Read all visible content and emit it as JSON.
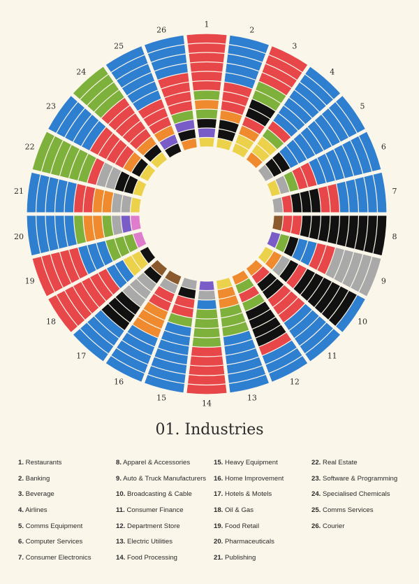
{
  "title": "01. Industries",
  "colors": {
    "background": "#fbf6ea",
    "blue": "#2f7fd0",
    "red": "#e8474a",
    "green": "#7eb03c",
    "black": "#111111",
    "gray": "#a9a9a9",
    "orange": "#ef8a2e",
    "yellow": "#ecd24a",
    "purple": "#7a5cc8",
    "pink": "#e07ccc",
    "brown": "#8a5a2e"
  },
  "chart_data": {
    "type": "radial-bar",
    "rings_per_segment": 12,
    "segments": [
      {
        "n": "1",
        "label": "Restaurants",
        "rings": [
          "yellow",
          "purple",
          "black",
          "green",
          "orange",
          "green",
          "red",
          "red",
          "red",
          "red",
          "red",
          "red"
        ]
      },
      {
        "n": "2",
        "label": "Banking",
        "rings": [
          "yellow",
          "black",
          "black",
          "orange",
          "red",
          "red",
          "red",
          "blue",
          "blue",
          "blue",
          "blue",
          "blue"
        ]
      },
      {
        "n": "3",
        "label": "Beverage",
        "rings": [
          "yellow",
          "yellow",
          "orange",
          "red",
          "black",
          "black",
          "green",
          "green",
          "red",
          "red",
          "red",
          "red"
        ]
      },
      {
        "n": "4",
        "label": "Airlines",
        "rings": [
          "orange",
          "yellow",
          "yellow",
          "green",
          "red",
          "blue",
          "blue",
          "blue",
          "blue",
          "blue",
          "blue",
          "blue"
        ]
      },
      {
        "n": "5",
        "label": "Comms Equipment",
        "rings": [
          "gray",
          "black",
          "black",
          "blue",
          "blue",
          "blue",
          "blue",
          "blue",
          "blue",
          "blue",
          "blue",
          "blue"
        ]
      },
      {
        "n": "6",
        "label": "Computer Services",
        "rings": [
          "yellow",
          "gray",
          "green",
          "red",
          "red",
          "blue",
          "blue",
          "blue",
          "blue",
          "blue",
          "blue",
          "blue"
        ]
      },
      {
        "n": "7",
        "label": "Consumer Electronics",
        "rings": [
          "gray",
          "red",
          "black",
          "black",
          "black",
          "red",
          "red",
          "blue",
          "blue",
          "blue",
          "blue",
          "blue"
        ]
      },
      {
        "n": "8",
        "label": "Apparel & Accessories",
        "rings": [
          "brown",
          "red",
          "red",
          "black",
          "black",
          "black",
          "black",
          "black",
          "black",
          "black",
          "black",
          "black"
        ]
      },
      {
        "n": "9",
        "label": "Auto & Truck Manufacturers",
        "rings": [
          "purple",
          "green",
          "black",
          "blue",
          "blue",
          "red",
          "red",
          "gray",
          "gray",
          "gray",
          "gray",
          "gray"
        ]
      },
      {
        "n": "10",
        "label": "Broadcasting & Cable",
        "rings": [
          "yellow",
          "orange",
          "gray",
          "black",
          "red",
          "black",
          "black",
          "black",
          "black",
          "black",
          "black",
          "blue"
        ]
      },
      {
        "n": "11",
        "label": "Consumer Finance",
        "rings": [
          "orange",
          "red",
          "black",
          "black",
          "red",
          "red",
          "red",
          "blue",
          "blue",
          "blue",
          "blue",
          "blue"
        ]
      },
      {
        "n": "12",
        "label": "Department Store",
        "rings": [
          "orange",
          "green",
          "red",
          "green",
          "black",
          "black",
          "black",
          "black",
          "red",
          "blue",
          "blue",
          "blue"
        ]
      },
      {
        "n": "13",
        "label": "Electric Utilities",
        "rings": [
          "yellow",
          "orange",
          "orange",
          "green",
          "green",
          "green",
          "blue",
          "blue",
          "blue",
          "blue",
          "blue",
          "blue"
        ]
      },
      {
        "n": "14",
        "label": "Food Processing",
        "rings": [
          "purple",
          "gray",
          "blue",
          "green",
          "green",
          "green",
          "green",
          "red",
          "red",
          "red",
          "red",
          "red"
        ]
      },
      {
        "n": "15",
        "label": "Heavy Equipment",
        "rings": [
          "gray",
          "black",
          "red",
          "red",
          "green",
          "blue",
          "blue",
          "blue",
          "blue",
          "blue",
          "blue",
          "blue"
        ]
      },
      {
        "n": "16",
        "label": "Home Improvement",
        "rings": [
          "brown",
          "gray",
          "red",
          "red",
          "orange",
          "orange",
          "orange",
          "blue",
          "blue",
          "blue",
          "blue",
          "blue"
        ]
      },
      {
        "n": "17",
        "label": "Hotels & Motels",
        "rings": [
          "brown",
          "black",
          "gray",
          "gray",
          "gray",
          "black",
          "black",
          "black",
          "blue",
          "blue",
          "blue",
          "blue"
        ]
      },
      {
        "n": "18",
        "label": "Oil & Gas",
        "rings": [
          "black",
          "yellow",
          "yellow",
          "blue",
          "blue",
          "red",
          "red",
          "red",
          "red",
          "red",
          "red",
          "red"
        ]
      },
      {
        "n": "19",
        "label": "Food Retail",
        "rings": [
          "pink",
          "green",
          "green",
          "green",
          "blue",
          "blue",
          "blue",
          "red",
          "red",
          "red",
          "red",
          "red"
        ]
      },
      {
        "n": "20",
        "label": "Pharmaceuticals",
        "rings": [
          "pink",
          "purple",
          "gray",
          "green",
          "orange",
          "orange",
          "green",
          "blue",
          "blue",
          "blue",
          "blue",
          "blue"
        ]
      },
      {
        "n": "21",
        "label": "Publishing",
        "rings": [
          "yellow",
          "gray",
          "gray",
          "orange",
          "orange",
          "red",
          "red",
          "blue",
          "blue",
          "blue",
          "blue",
          "blue"
        ]
      },
      {
        "n": "22",
        "label": "Real Estate",
        "rings": [
          "yellow",
          "black",
          "black",
          "gray",
          "gray",
          "red",
          "green",
          "green",
          "green",
          "green",
          "green",
          "green"
        ]
      },
      {
        "n": "23",
        "label": "Software & Programming",
        "rings": [
          "yellow",
          "black",
          "orange",
          "red",
          "red",
          "red",
          "red",
          "blue",
          "blue",
          "blue",
          "blue",
          "blue"
        ]
      },
      {
        "n": "24",
        "label": "Specialised Chemicals",
        "rings": [
          "yellow",
          "black",
          "orange",
          "red",
          "red",
          "red",
          "red",
          "red",
          "green",
          "green",
          "green",
          "green"
        ]
      },
      {
        "n": "25",
        "label": "Comms Services",
        "rings": [
          "black",
          "purple",
          "orange",
          "red",
          "red",
          "red",
          "blue",
          "blue",
          "blue",
          "blue",
          "blue",
          "blue"
        ]
      },
      {
        "n": "26",
        "label": "Courier",
        "rings": [
          "orange",
          "black",
          "purple",
          "green",
          "red",
          "red",
          "red",
          "red",
          "blue",
          "blue",
          "blue",
          "blue"
        ]
      }
    ]
  }
}
